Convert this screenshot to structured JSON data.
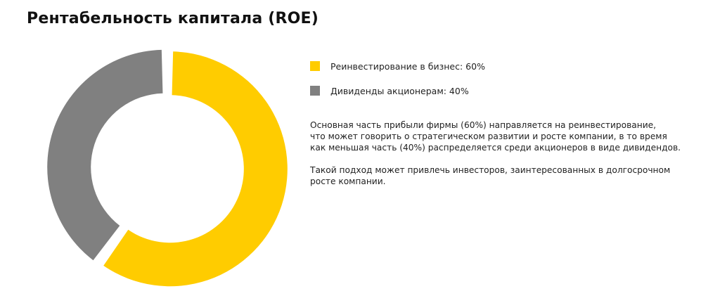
{
  "chart_data": {
    "type": "pie",
    "title": "Рентабельность капитала (ROE)",
    "slices": [
      {
        "label": "Реинвестирование в бизнес: 60%",
        "value": 60,
        "color": "#FFCC00"
      },
      {
        "label": "Дивиденды акционерам: 40%",
        "value": 40,
        "color": "#808080"
      }
    ],
    "legend_position": "right"
  },
  "description": [
    "Основная часть прибыли фирмы (60%) направляется на реинвестирование,\nчто может говорить о стратегическом развитии и росте компании, в то время\nкак меньшая часть (40%) распределяется среди акционеров в виде дивидендов.",
    "Такой подход может привлечь инвесторов, заинтересованных в долгосрочном\nросте компании."
  ]
}
